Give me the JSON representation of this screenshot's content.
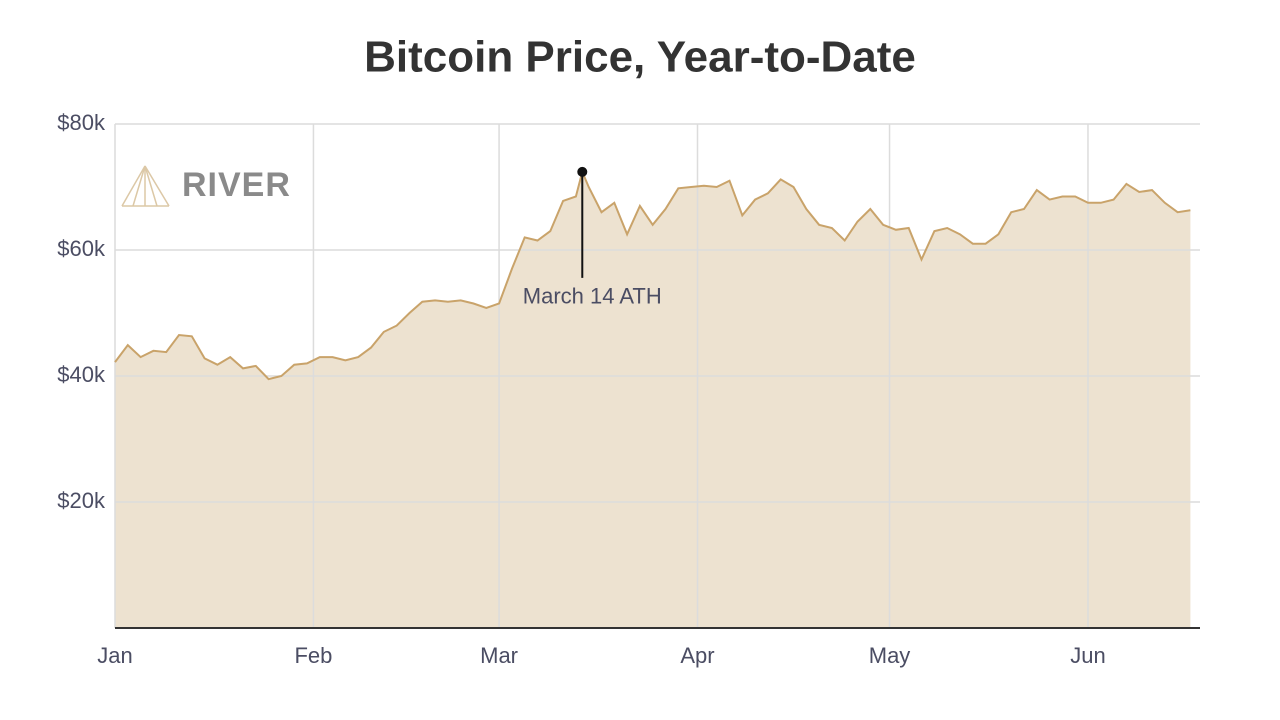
{
  "chart_data": {
    "type": "area",
    "title": "Bitcoin Price, Year-to-Date",
    "logo": "RIVER",
    "x": [
      0,
      2,
      4,
      6,
      8,
      10,
      12,
      14,
      16,
      18,
      20,
      22,
      24,
      26,
      28,
      30,
      32,
      34,
      36,
      38,
      40,
      42,
      44,
      46,
      48,
      50,
      52,
      54,
      56,
      58,
      60,
      62,
      64,
      66,
      68,
      70,
      72,
      73,
      74,
      76,
      78,
      80,
      82,
      84,
      86,
      88,
      90,
      92,
      94,
      96,
      98,
      100,
      102,
      104,
      106,
      108,
      110,
      112,
      114,
      116,
      118,
      120,
      122,
      124,
      126,
      128,
      130,
      132,
      134,
      136,
      138,
      140,
      142,
      144,
      146,
      148,
      150,
      152,
      154,
      156,
      158,
      160,
      162,
      164,
      166,
      168
    ],
    "series": [
      {
        "color": "#c9a36a",
        "fill": "#ede2d0",
        "values": [
          42200,
          44900,
          43000,
          44000,
          43800,
          46500,
          46300,
          42800,
          41800,
          43000,
          41200,
          41600,
          39500,
          40000,
          41800,
          42000,
          43000,
          43000,
          42500,
          43000,
          44500,
          47000,
          48000,
          50000,
          51800,
          52000,
          51800,
          52000,
          51500,
          50800,
          51500,
          57000,
          62000,
          61500,
          63000,
          67800,
          68500,
          72400,
          70000,
          66000,
          67500,
          62500,
          67000,
          64000,
          66500,
          69800,
          70000,
          70200,
          70000,
          71000,
          65500,
          68000,
          69000,
          71200,
          70000,
          66500,
          64000,
          63500,
          61500,
          64500,
          66500,
          64000,
          63200,
          63500,
          58500,
          63000,
          63500,
          62500,
          61000,
          61000,
          62500,
          66000,
          66500,
          69500,
          68000,
          68500,
          68500,
          67500,
          67500,
          68000,
          70500,
          69200,
          69500,
          67500,
          66000,
          66300
        ]
      }
    ],
    "annotations": [
      {
        "text": "March 14 ATH",
        "x": 73,
        "y": 72400
      }
    ],
    "xlim": [
      0,
      169.5
    ],
    "xticks": [
      {
        "value": 0,
        "label": "Jan"
      },
      {
        "value": 31,
        "label": "Feb"
      },
      {
        "value": 60,
        "label": "Mar"
      },
      {
        "value": 91,
        "label": "Apr"
      },
      {
        "value": 121,
        "label": "May"
      },
      {
        "value": 152,
        "label": "Jun"
      }
    ],
    "ylim": [
      0,
      80000
    ],
    "yticks": [
      {
        "value": 20000,
        "label": "$20k"
      },
      {
        "value": 40000,
        "label": "$40k"
      },
      {
        "value": 60000,
        "label": "$60k"
      },
      {
        "value": 80000,
        "label": "$80k"
      }
    ],
    "grid": true
  }
}
